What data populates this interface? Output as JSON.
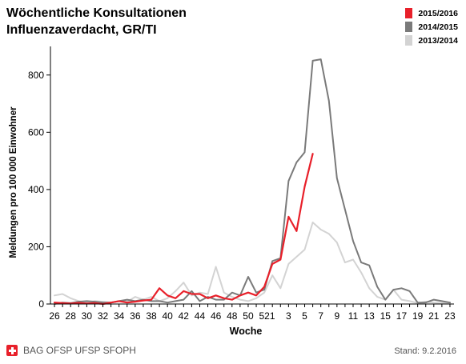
{
  "header": {
    "title_line1": "Wöchentliche Konsultationen",
    "title_line2": "Influenzaverdacht, GR/TI"
  },
  "footer": {
    "org": "BAG OFSP UFSP SFOPH",
    "stand": "Stand: 9.2.2016"
  },
  "chart_data": {
    "type": "line",
    "title": "Wöchentliche Konsultationen Influenzaverdacht, GR/TI",
    "xlabel": "Woche",
    "ylabel": "Meldungen pro 100 000 Einwohner",
    "ylim": [
      0,
      900
    ],
    "yticks": [
      0,
      200,
      400,
      600,
      800
    ],
    "xtick_labels": [
      "26",
      "28",
      "30",
      "32",
      "34",
      "36",
      "38",
      "40",
      "42",
      "44",
      "46",
      "48",
      "50",
      "52",
      "1",
      "3",
      "5",
      "7",
      "9",
      "11",
      "13",
      "15",
      "17",
      "19",
      "21",
      "23"
    ],
    "weeks": [
      26,
      27,
      28,
      29,
      30,
      31,
      32,
      33,
      34,
      35,
      36,
      37,
      38,
      39,
      40,
      41,
      42,
      43,
      44,
      45,
      46,
      47,
      48,
      49,
      50,
      51,
      52,
      1,
      2,
      3,
      4,
      5,
      6,
      7,
      8,
      9,
      10,
      11,
      12,
      13,
      14,
      15,
      16,
      17,
      18,
      19,
      20,
      21,
      22,
      23
    ],
    "legend_position": "top-right",
    "series": [
      {
        "name": "2015/2016",
        "color": "#e8202a",
        "values": [
          5,
          3,
          2,
          4,
          2,
          3,
          0,
          5,
          10,
          5,
          8,
          12,
          15,
          55,
          30,
          20,
          45,
          35,
          35,
          20,
          30,
          20,
          15,
          30,
          40,
          30,
          60,
          140,
          155,
          305,
          255,
          410,
          525,
          null,
          null,
          null,
          null,
          null,
          null,
          null,
          null,
          null,
          null,
          null,
          null,
          null,
          null,
          null,
          null,
          null
        ]
      },
      {
        "name": "2014/2015",
        "color": "#7a7a7a",
        "values": [
          0,
          5,
          3,
          8,
          10,
          8,
          5,
          5,
          10,
          15,
          10,
          15,
          10,
          10,
          5,
          10,
          15,
          45,
          10,
          25,
          15,
          15,
          40,
          30,
          95,
          40,
          50,
          150,
          160,
          430,
          495,
          530,
          850,
          855,
          710,
          440,
          330,
          220,
          145,
          135,
          60,
          15,
          50,
          55,
          45,
          5,
          5,
          15,
          10,
          5
        ]
      },
      {
        "name": "2013/2014",
        "color": "#d3d3d3",
        "values": [
          30,
          35,
          20,
          10,
          5,
          10,
          8,
          5,
          10,
          8,
          25,
          15,
          25,
          10,
          20,
          45,
          75,
          30,
          40,
          35,
          130,
          40,
          25,
          15,
          10,
          20,
          40,
          100,
          55,
          140,
          165,
          190,
          285,
          260,
          245,
          215,
          145,
          155,
          110,
          55,
          25,
          15,
          50,
          15,
          10,
          3,
          8,
          5,
          3,
          3
        ]
      }
    ]
  }
}
